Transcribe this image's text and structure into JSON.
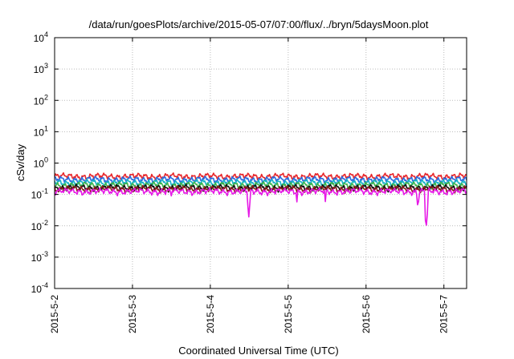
{
  "chart_data": {
    "type": "line",
    "title": "/data/run/goesPlots/archive/2015-05-07/07:00/flux/../bryn/5daysMoon.plot",
    "xlabel": "Coordinated Universal Time (UTC)",
    "ylabel": "cSv/day",
    "y_scale": "log",
    "ylim": [
      0.0001,
      10000
    ],
    "y_ticks": [
      {
        "base": "10",
        "exp": "-4",
        "value": 0.0001
      },
      {
        "base": "10",
        "exp": "-3",
        "value": 0.001
      },
      {
        "base": "10",
        "exp": "-2",
        "value": 0.01
      },
      {
        "base": "10",
        "exp": "-1",
        "value": 0.1
      },
      {
        "base": "10",
        "exp": "0",
        "value": 1
      },
      {
        "base": "10",
        "exp": "1",
        "value": 10
      },
      {
        "base": "10",
        "exp": "2",
        "value": 100
      },
      {
        "base": "10",
        "exp": "3",
        "value": 1000
      },
      {
        "base": "10",
        "exp": "4",
        "value": 10000
      }
    ],
    "x_range": [
      "2015-05-02 00:00",
      "2015-05-07 07:00"
    ],
    "x_ticks": [
      "2015-5-2",
      "2015-5-3",
      "2015-5-4",
      "2015-5-5",
      "2015-5-6",
      "2015-5-7"
    ],
    "grid": true,
    "series": [
      {
        "color": "#e8262b",
        "baseline": 0.38,
        "dips": []
      },
      {
        "color": "#2b6be0",
        "baseline": 0.3,
        "dips": []
      },
      {
        "color": "#17b3c7",
        "baseline": 0.24,
        "dips": []
      },
      {
        "color": "#3cb44b",
        "baseline": 0.2,
        "dips": []
      },
      {
        "color": "#111111",
        "baseline": 0.165,
        "dips": []
      },
      {
        "color": "#8b1a1a",
        "baseline": 0.15,
        "dips": []
      },
      {
        "color": "#e619e6",
        "baseline": 0.125,
        "dips": [
          {
            "date": "2015-05-02 17:00",
            "value": 0.09
          },
          {
            "date": "2015-05-03 12:00",
            "value": 0.08
          },
          {
            "date": "2015-05-04 11:50",
            "value": 0.015
          },
          {
            "date": "2015-05-05 02:40",
            "value": 0.05
          },
          {
            "date": "2015-05-05 11:30",
            "value": 0.045
          },
          {
            "date": "2015-05-06 12:00",
            "value": 0.09
          },
          {
            "date": "2015-05-06 16:00",
            "value": 0.025
          },
          {
            "date": "2015-05-06 18:30",
            "value": 0.006
          },
          {
            "date": "2015-05-07 00:50",
            "value": 0.055
          }
        ]
      }
    ]
  }
}
